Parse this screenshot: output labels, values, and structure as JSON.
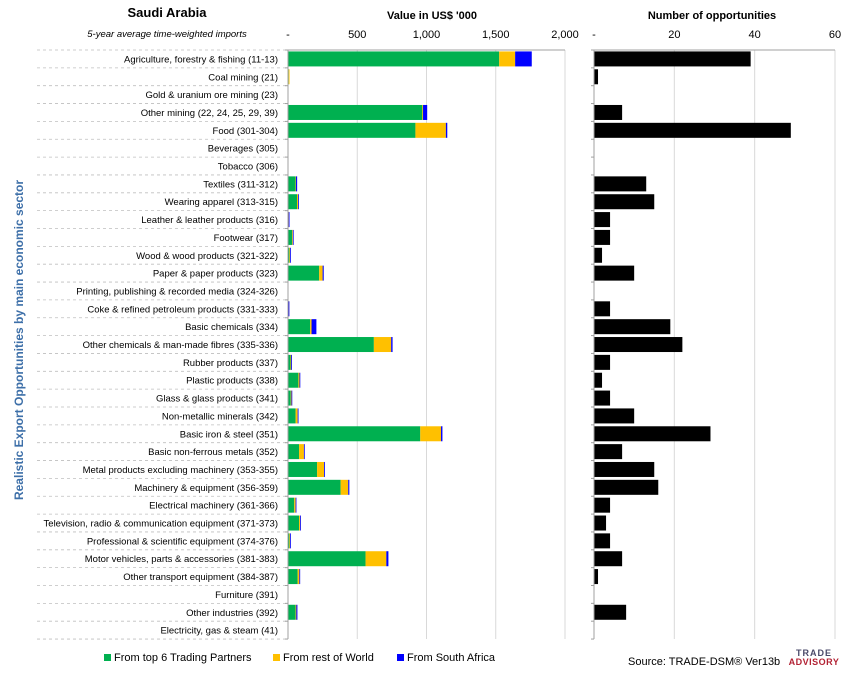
{
  "header": {
    "country": "Saudi Arabia",
    "subtitle": "5-year average time-weighted imports",
    "value_title": "Value in US$ '000",
    "count_title": "Number of opportunities"
  },
  "y_title": "Realistic Export Opportunities by main economic sector",
  "source": "Source: TRADE-DSM® Ver13b",
  "logo": {
    "line1": "TRADE",
    "line2": "ADVISORY"
  },
  "colors": {
    "top6": "#00b050",
    "rest": "#ffc000",
    "sa": "#0000ff",
    "count": "#000000",
    "grid": "#d9d9d9"
  },
  "chart_data": [
    {
      "type": "bar",
      "orientation": "horizontal",
      "stacked": true,
      "title": "Value in US$ '000",
      "xlim": [
        0,
        2000
      ],
      "ticks": [
        "-",
        "500",
        "1,000",
        "1,500",
        "2,000"
      ],
      "tick_values": [
        0,
        500,
        1000,
        1500,
        2000
      ],
      "legend_position": "bottom",
      "categories": [
        "Agriculture, forestry & fishing (11-13)",
        "Coal mining (21)",
        "Gold & uranium ore mining (23)",
        "Other mining (22, 24, 25, 29, 39)",
        "Food (301-304)",
        "Beverages (305)",
        "Tobacco (306)",
        "Textiles (311-312)",
        "Wearing apparel (313-315)",
        "Leather & leather products (316)",
        "Footwear (317)",
        "Wood & wood products (321-322)",
        "Paper & paper products (323)",
        "Printing, publishing & recorded media (324-326)",
        "Coke & refined petroleum products (331-333)",
        "Basic chemicals (334)",
        "Other chemicals & man-made fibres (335-336)",
        "Rubber products (337)",
        "Plastic products (338)",
        "Glass & glass products (341)",
        "Non-metallic minerals (342)",
        "Basic iron & steel (351)",
        "Basic non-ferrous metals (352)",
        "Metal products excluding machinery (353-355)",
        "Machinery & equipment (356-359)",
        "Electrical machinery (361-366)",
        "Television, radio & communication equipment (371-373)",
        "Professional & scientific equipment (374-376)",
        "Motor vehicles, parts & accessories (381-383)",
        "Other transport equipment (384-387)",
        "Furniture (391)",
        "Other industries (392)",
        "Electricity, gas & steam (41)"
      ],
      "series": [
        {
          "name": "From top 6 Trading Partners",
          "values": [
            1525,
            5,
            0,
            970,
            920,
            0,
            0,
            55,
            65,
            4,
            30,
            10,
            225,
            0,
            3,
            160,
            620,
            18,
            75,
            20,
            55,
            955,
            80,
            210,
            380,
            45,
            80,
            10,
            560,
            70,
            0,
            55,
            0
          ]
        },
        {
          "name": "From rest of World",
          "values": [
            115,
            5,
            0,
            5,
            220,
            0,
            0,
            3,
            8,
            1,
            5,
            5,
            25,
            0,
            1,
            10,
            125,
            5,
            8,
            5,
            15,
            150,
            35,
            50,
            55,
            10,
            8,
            5,
            150,
            12,
            0,
            5,
            0
          ]
        },
        {
          "name": "From South Africa",
          "values": [
            120,
            0,
            0,
            30,
            10,
            0,
            0,
            8,
            5,
            2,
            5,
            2,
            8,
            0,
            3,
            35,
            10,
            3,
            5,
            5,
            3,
            10,
            5,
            6,
            8,
            4,
            4,
            3,
            15,
            5,
            0,
            8,
            0
          ]
        }
      ]
    },
    {
      "type": "bar",
      "orientation": "horizontal",
      "title": "Number of opportunities",
      "xlim": [
        0,
        60
      ],
      "ticks": [
        "-",
        "20",
        "40",
        "60"
      ],
      "tick_values": [
        0,
        20,
        40,
        60
      ],
      "values": [
        39,
        1,
        0,
        7,
        49,
        0,
        0,
        13,
        15,
        4,
        4,
        2,
        10,
        0,
        4,
        19,
        22,
        4,
        2,
        4,
        10,
        29,
        7,
        15,
        16,
        4,
        3,
        4,
        7,
        1,
        0,
        8,
        0
      ]
    }
  ]
}
